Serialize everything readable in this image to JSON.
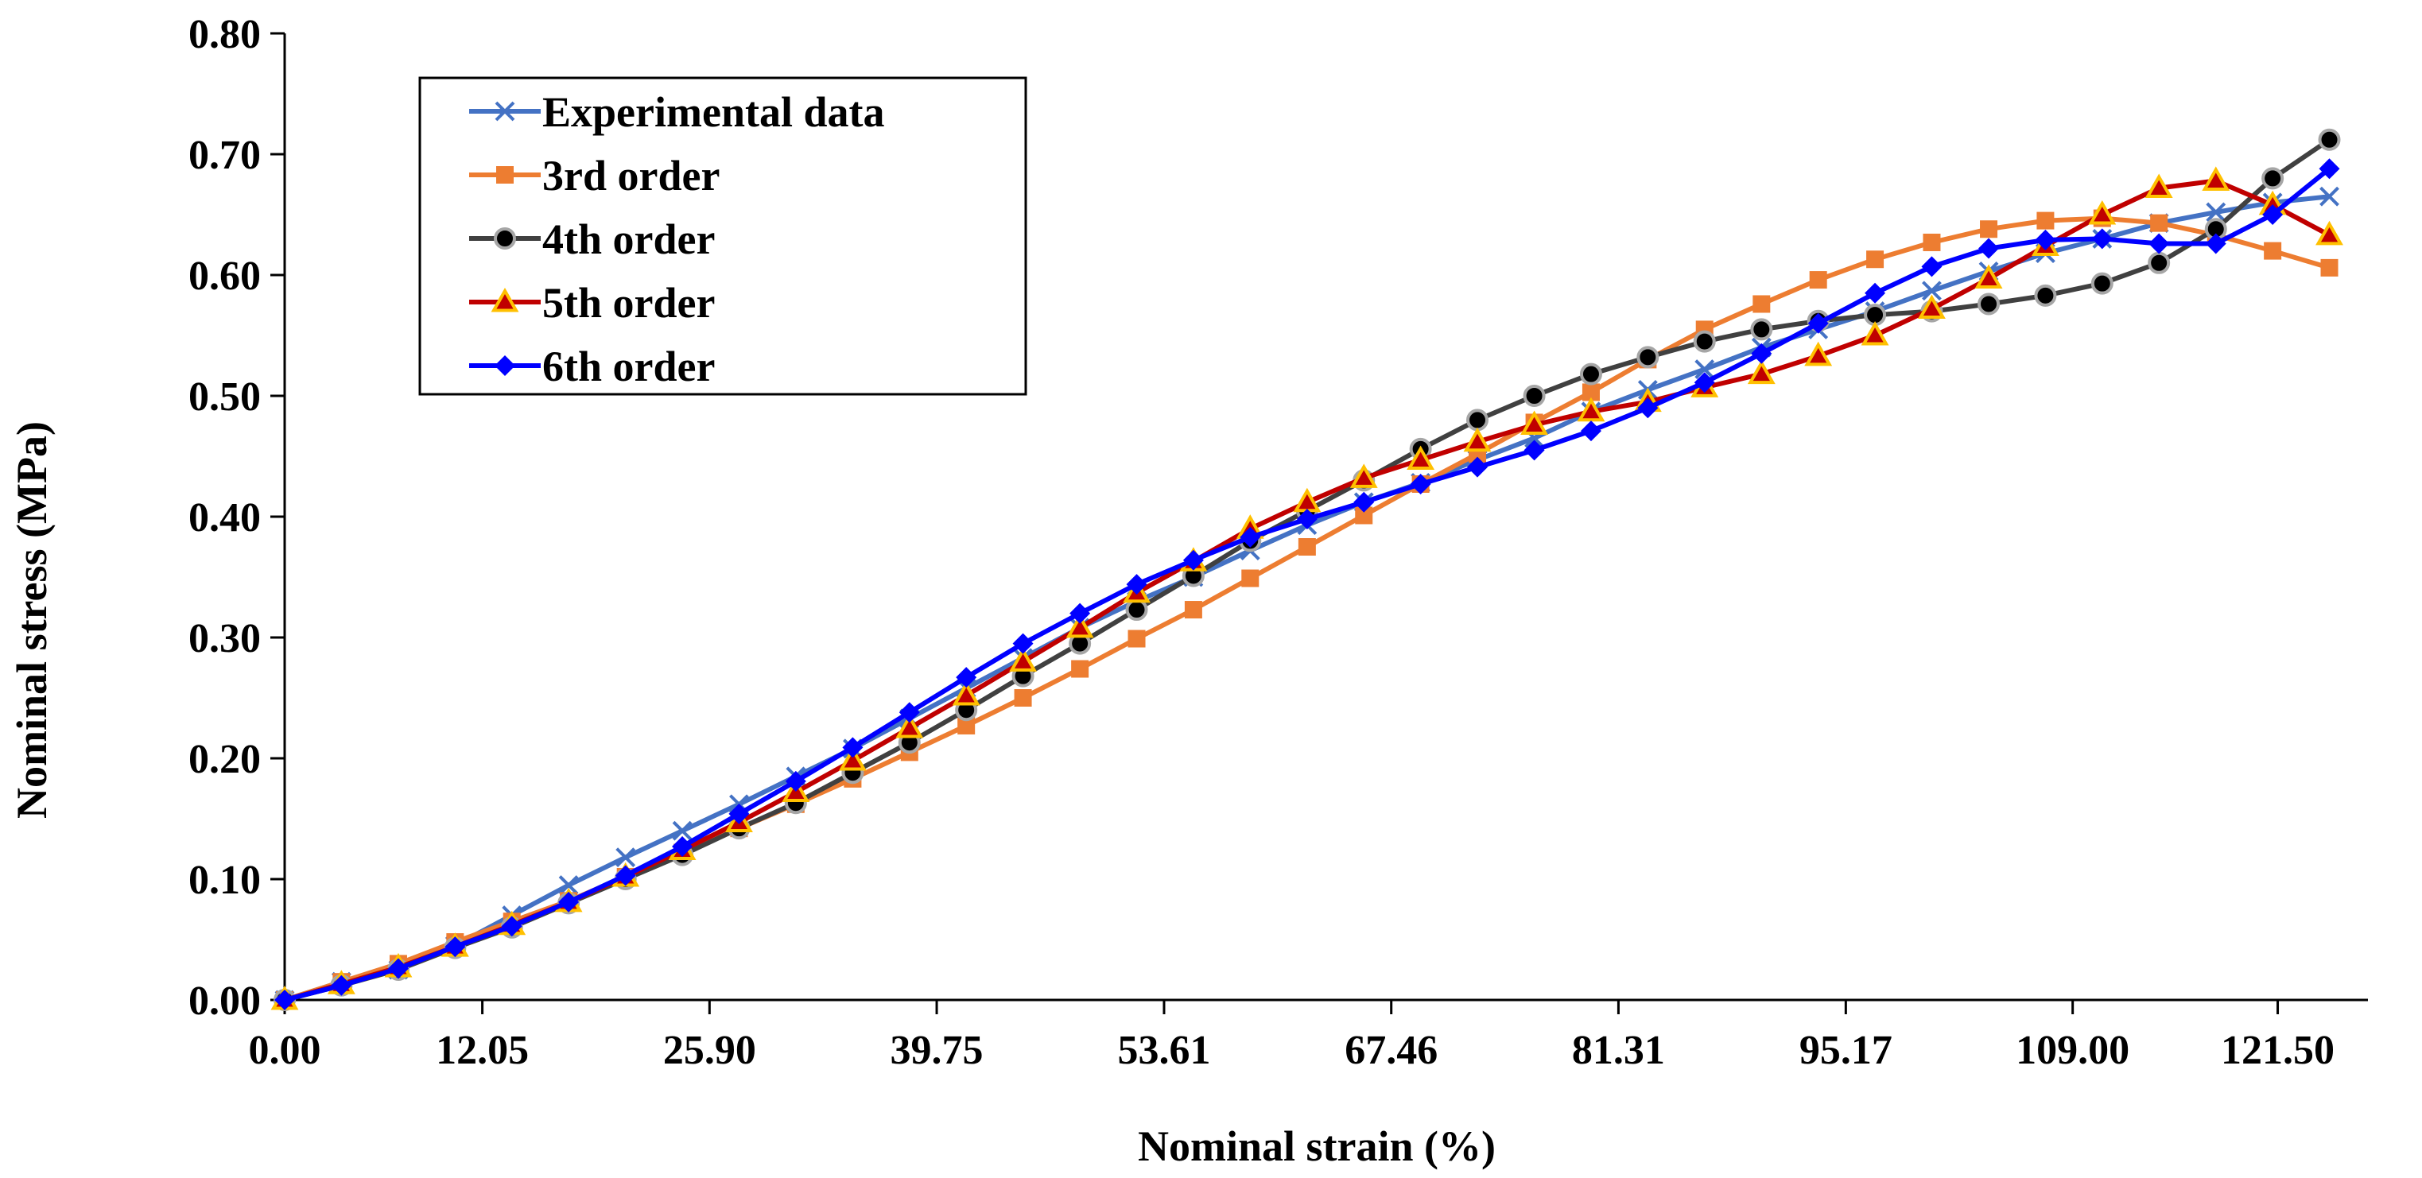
{
  "chart_data": {
    "type": "line",
    "xlabel": "Nominal strain (%)",
    "ylabel": "Nominal stress (MPa)",
    "x_ticks": [
      "0.00",
      "12.05",
      "25.90",
      "39.75",
      "53.61",
      "67.46",
      "81.31",
      "95.17",
      "109.00",
      "121.50"
    ],
    "y_ticks": [
      "0.00",
      "0.10",
      "0.20",
      "0.30",
      "0.40",
      "0.50",
      "0.60",
      "0.70",
      "0.80"
    ],
    "ylim": [
      0,
      0.8
    ],
    "grid": false,
    "legend_position": "top-left",
    "x": [
      0.0,
      3.46,
      6.93,
      10.39,
      13.85,
      17.31,
      20.78,
      24.24,
      27.7,
      31.16,
      34.63,
      38.09,
      41.55,
      45.01,
      48.48,
      51.94,
      55.4,
      58.86,
      62.33,
      65.79,
      69.25,
      72.71,
      76.18,
      79.64,
      83.1,
      86.56,
      90.03,
      93.49,
      96.95,
      100.41,
      103.88,
      107.34,
      110.8,
      114.26,
      117.73,
      121.19,
      124.65
    ],
    "series": [
      {
        "name": "Experimental data",
        "color": "#4472C4",
        "marker": "x",
        "values": [
          0.0,
          0.015,
          0.025,
          0.045,
          0.07,
          0.095,
          0.118,
          0.14,
          0.162,
          0.185,
          0.208,
          0.233,
          0.258,
          0.283,
          0.308,
          0.33,
          0.35,
          0.372,
          0.393,
          0.412,
          0.428,
          0.447,
          0.465,
          0.487,
          0.505,
          0.522,
          0.54,
          0.555,
          0.57,
          0.587,
          0.603,
          0.618,
          0.63,
          0.643,
          0.652,
          0.66,
          0.665
        ]
      },
      {
        "name": "3rd order",
        "color": "#ED7D31",
        "marker": "square",
        "values": [
          0.0,
          0.015,
          0.03,
          0.048,
          0.065,
          0.082,
          0.102,
          0.122,
          0.142,
          0.162,
          0.183,
          0.205,
          0.227,
          0.25,
          0.274,
          0.299,
          0.323,
          0.349,
          0.375,
          0.401,
          0.427,
          0.452,
          0.478,
          0.503,
          0.53,
          0.555,
          0.576,
          0.596,
          0.613,
          0.627,
          0.638,
          0.645,
          0.647,
          0.643,
          0.633,
          0.62,
          0.606
        ]
      },
      {
        "name": "4th order",
        "color": "#404040",
        "marker": "circle",
        "values": [
          0.0,
          0.012,
          0.025,
          0.043,
          0.06,
          0.08,
          0.1,
          0.12,
          0.142,
          0.163,
          0.188,
          0.213,
          0.24,
          0.268,
          0.295,
          0.323,
          0.351,
          0.38,
          0.405,
          0.43,
          0.456,
          0.48,
          0.5,
          0.518,
          0.532,
          0.545,
          0.555,
          0.562,
          0.567,
          0.57,
          0.576,
          0.583,
          0.593,
          0.61,
          0.638,
          0.68,
          0.712
        ]
      },
      {
        "name": "5th order",
        "color": "#C00000",
        "marker": "triangle",
        "values": [
          0.0,
          0.013,
          0.027,
          0.044,
          0.062,
          0.081,
          0.102,
          0.124,
          0.147,
          0.172,
          0.198,
          0.225,
          0.252,
          0.28,
          0.308,
          0.337,
          0.363,
          0.39,
          0.412,
          0.432,
          0.447,
          0.462,
          0.476,
          0.487,
          0.495,
          0.507,
          0.518,
          0.533,
          0.55,
          0.572,
          0.597,
          0.624,
          0.65,
          0.672,
          0.678,
          0.658,
          0.633
        ]
      },
      {
        "name": "6th order",
        "color": "#0000FF",
        "marker": "diamond",
        "values": [
          0.0,
          0.012,
          0.026,
          0.044,
          0.061,
          0.081,
          0.103,
          0.127,
          0.154,
          0.181,
          0.209,
          0.238,
          0.267,
          0.295,
          0.32,
          0.344,
          0.364,
          0.383,
          0.398,
          0.412,
          0.427,
          0.441,
          0.455,
          0.471,
          0.49,
          0.511,
          0.535,
          0.56,
          0.585,
          0.607,
          0.622,
          0.629,
          0.63,
          0.626,
          0.626,
          0.65,
          0.688
        ]
      }
    ]
  }
}
